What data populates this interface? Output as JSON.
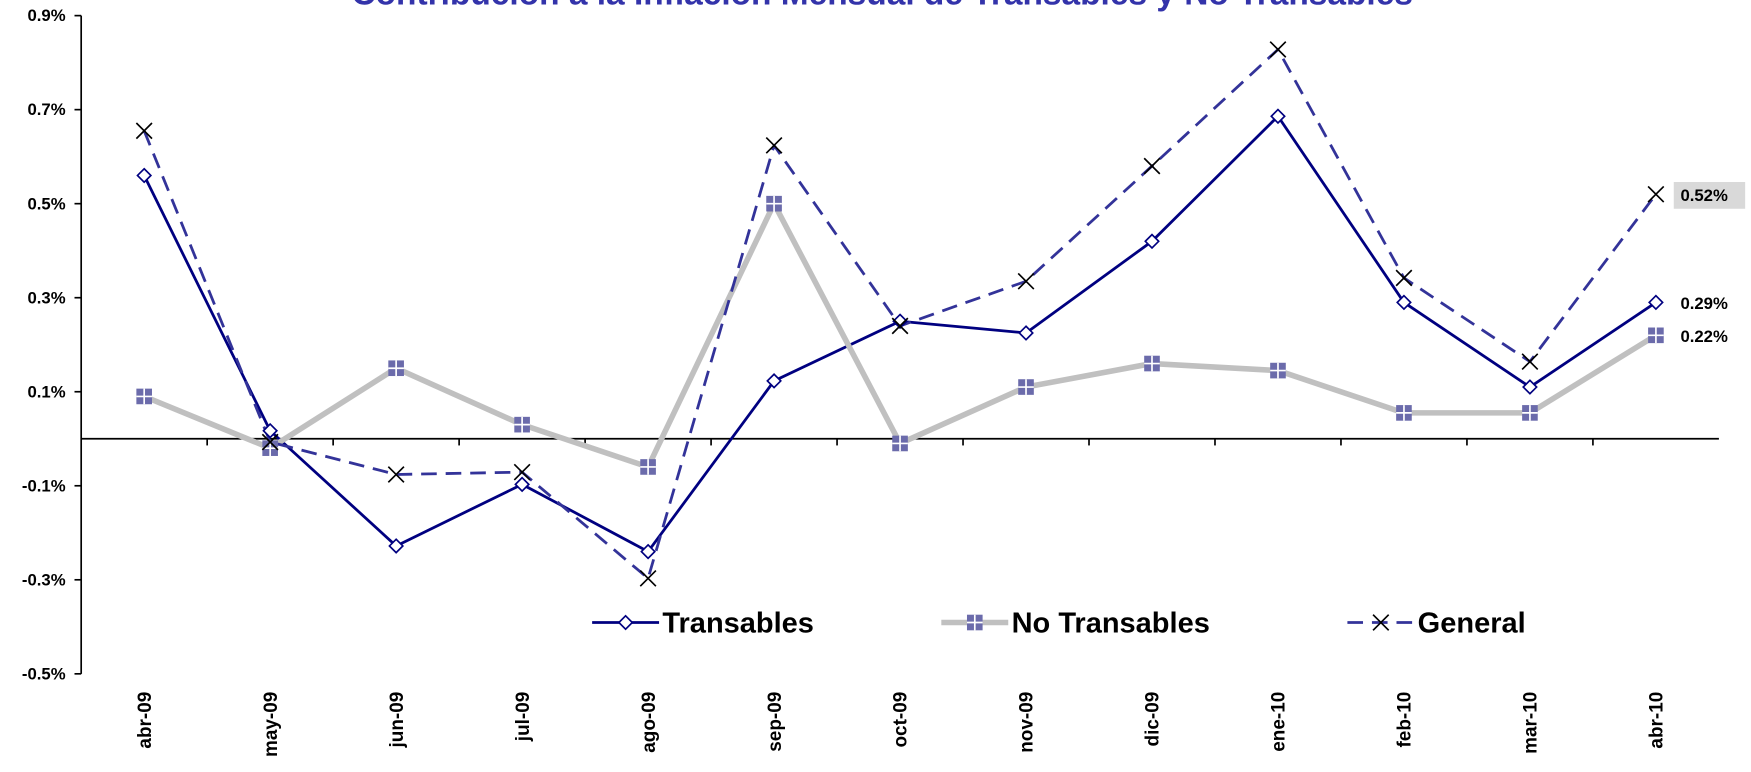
{
  "chart_data": {
    "type": "line",
    "title": "Contribución a la Inflación Mensual de Transables y No Transables",
    "categories": [
      "abr-09",
      "may-09",
      "jun-09",
      "jul-09",
      "ago-09",
      "sep-09",
      "oct-09",
      "nov-09",
      "dic-09",
      "ene-10",
      "feb-10",
      "mar-10",
      "abr-10"
    ],
    "series": [
      {
        "name": "Transables",
        "color": "#000080",
        "values": [
          0.56,
          0.017,
          -0.228,
          -0.097,
          -0.24,
          0.123,
          0.25,
          0.225,
          0.42,
          0.686,
          0.29,
          0.11,
          0.29
        ],
        "value_labels": [
          null,
          null,
          null,
          null,
          null,
          null,
          null,
          null,
          null,
          null,
          null,
          null,
          "0.29%"
        ]
      },
      {
        "name": "No Transables",
        "color": "#c0c0c0",
        "values": [
          0.09,
          -0.02,
          0.15,
          0.03,
          -0.06,
          0.5,
          -0.01,
          0.11,
          0.16,
          0.145,
          0.055,
          0.055,
          0.22
        ],
        "value_labels": [
          null,
          null,
          null,
          null,
          null,
          null,
          null,
          null,
          null,
          null,
          null,
          null,
          "0.22%"
        ]
      },
      {
        "name": "General",
        "color": "#333399",
        "values": [
          0.655,
          -0.007,
          -0.076,
          -0.071,
          -0.297,
          0.624,
          0.24,
          0.335,
          0.58,
          0.828,
          0.342,
          0.164,
          0.52
        ],
        "value_labels": [
          null,
          null,
          null,
          null,
          null,
          null,
          null,
          null,
          null,
          null,
          null,
          null,
          "0.52%"
        ]
      }
    ],
    "ylim": [
      -0.5,
      0.9
    ],
    "yticks": [
      {
        "value": -0.5,
        "label": "-0.5%"
      },
      {
        "value": -0.3,
        "label": "-0.3%"
      },
      {
        "value": -0.1,
        "label": "-0.1%"
      },
      {
        "value": 0.1,
        "label": "0.1%"
      },
      {
        "value": 0.3,
        "label": "0.3%"
      },
      {
        "value": 0.5,
        "label": "0.5%"
      },
      {
        "value": 0.7,
        "label": "0.7%"
      },
      {
        "value": 0.9,
        "label": "0.9%"
      }
    ],
    "grid": false,
    "legend": "bottom"
  }
}
